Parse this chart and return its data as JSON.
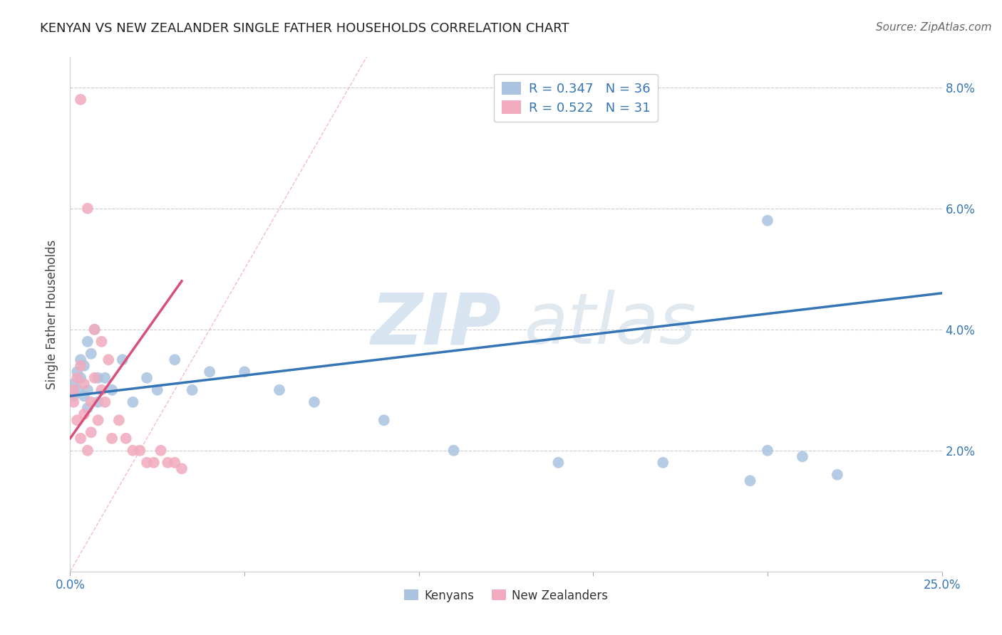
{
  "title": "KENYAN VS NEW ZEALANDER SINGLE FATHER HOUSEHOLDS CORRELATION CHART",
  "source": "Source: ZipAtlas.com",
  "ylabel": "Single Father Households",
  "xlim": [
    0.0,
    0.25
  ],
  "ylim": [
    0.0,
    0.085
  ],
  "legend_r1": "R = 0.347",
  "legend_n1": "N = 36",
  "legend_r2": "R = 0.522",
  "legend_n2": "N = 31",
  "kenyan_color": "#aac4e0",
  "nz_color": "#f2aabe",
  "kenyan_line_color": "#3575b5",
  "nz_line_color": "#d94f7a",
  "diag_line_color": "#f2aabe",
  "background_color": "#ffffff",
  "kenyan_line_x0": 0.0,
  "kenyan_line_y0": 0.029,
  "kenyan_line_x1": 0.25,
  "kenyan_line_y1": 0.046,
  "nz_line_x0": 0.0,
  "nz_line_y0": 0.022,
  "nz_line_x1": 0.032,
  "nz_line_y1": 0.048,
  "kenyan_x": [
    0.001,
    0.001,
    0.002,
    0.002,
    0.003,
    0.003,
    0.004,
    0.004,
    0.005,
    0.005,
    0.005,
    0.006,
    0.007,
    0.008,
    0.008,
    0.01,
    0.012,
    0.015,
    0.018,
    0.022,
    0.025,
    0.03,
    0.035,
    0.04,
    0.05,
    0.06,
    0.07,
    0.09,
    0.11,
    0.14,
    0.17,
    0.2,
    0.21,
    0.22,
    0.2,
    0.195
  ],
  "kenyan_y": [
    0.031,
    0.029,
    0.033,
    0.03,
    0.032,
    0.035,
    0.034,
    0.029,
    0.038,
    0.03,
    0.027,
    0.036,
    0.04,
    0.028,
    0.032,
    0.032,
    0.03,
    0.035,
    0.028,
    0.032,
    0.03,
    0.035,
    0.03,
    0.033,
    0.033,
    0.03,
    0.028,
    0.025,
    0.02,
    0.018,
    0.018,
    0.02,
    0.019,
    0.016,
    0.058,
    0.015
  ],
  "nz_x": [
    0.001,
    0.001,
    0.002,
    0.002,
    0.003,
    0.003,
    0.004,
    0.004,
    0.005,
    0.006,
    0.006,
    0.007,
    0.008,
    0.009,
    0.01,
    0.012,
    0.014,
    0.016,
    0.018,
    0.02,
    0.022,
    0.024,
    0.026,
    0.028,
    0.03,
    0.032,
    0.003,
    0.005,
    0.007,
    0.009,
    0.011
  ],
  "nz_y": [
    0.03,
    0.028,
    0.025,
    0.032,
    0.034,
    0.022,
    0.026,
    0.031,
    0.02,
    0.028,
    0.023,
    0.032,
    0.025,
    0.03,
    0.028,
    0.022,
    0.025,
    0.022,
    0.02,
    0.02,
    0.018,
    0.018,
    0.02,
    0.018,
    0.018,
    0.017,
    0.078,
    0.06,
    0.04,
    0.038,
    0.035
  ]
}
